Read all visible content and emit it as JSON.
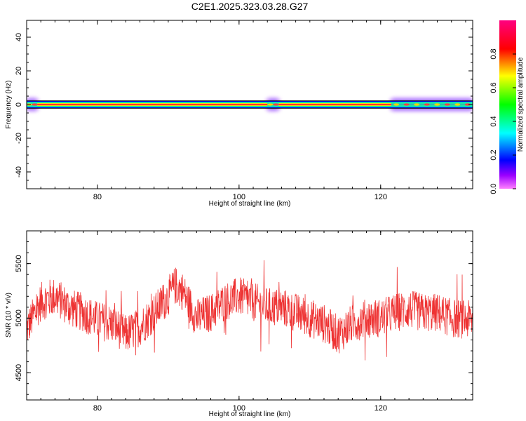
{
  "figure": {
    "title": "C2E1.2025.323.03.28.G27"
  },
  "chart_data": [
    {
      "type": "heatmap",
      "xlabel": "Height of straight line (km)",
      "ylabel": "Frequency (Hz)",
      "xlim": [
        70,
        133
      ],
      "ylim": [
        -50,
        50
      ],
      "xticks": [
        80,
        100,
        120
      ],
      "yticks": [
        -40,
        -20,
        0,
        20,
        40
      ],
      "colorbar": {
        "label": "Normalized spectral amplitude",
        "range": [
          0,
          1
        ],
        "ticks": [
          "0.0",
          "0.2",
          "0.4",
          "0.6",
          "0.8"
        ]
      },
      "line_frequency": 0,
      "disturbances": [
        {
          "x_from": 70,
          "x_to": 71.5
        },
        {
          "x_from": 104,
          "x_to": 105.6
        },
        {
          "x_from": 121.5,
          "x_to": 133
        }
      ]
    },
    {
      "type": "line",
      "xlabel": "Height of straight line (km)",
      "ylabel": "SNR (10 * v/v)",
      "xlim": [
        70,
        133
      ],
      "ylim": [
        4250,
        5800
      ],
      "xticks": [
        80,
        100,
        120
      ],
      "yticks": [
        4500,
        5000,
        5500
      ],
      "color": "#ee3333",
      "trend": {
        "x": [
          70,
          72,
          74,
          76,
          78,
          80,
          82,
          84,
          86,
          88,
          90,
          91,
          92,
          94,
          96,
          98,
          100,
          102,
          104,
          106,
          108,
          110,
          112,
          114,
          116,
          118,
          120,
          122,
          124,
          126,
          128,
          130,
          133
        ],
        "y": [
          4900,
          5150,
          5200,
          5100,
          5050,
          4980,
          4950,
          4850,
          4920,
          5050,
          5200,
          5300,
          5250,
          5000,
          5050,
          5150,
          5200,
          5150,
          5100,
          5100,
          5050,
          5000,
          4950,
          4850,
          4950,
          5000,
          5000,
          5050,
          5080,
          5050,
          5050,
          5000,
          4980
        ]
      },
      "noise_amplitude": 180
    }
  ]
}
